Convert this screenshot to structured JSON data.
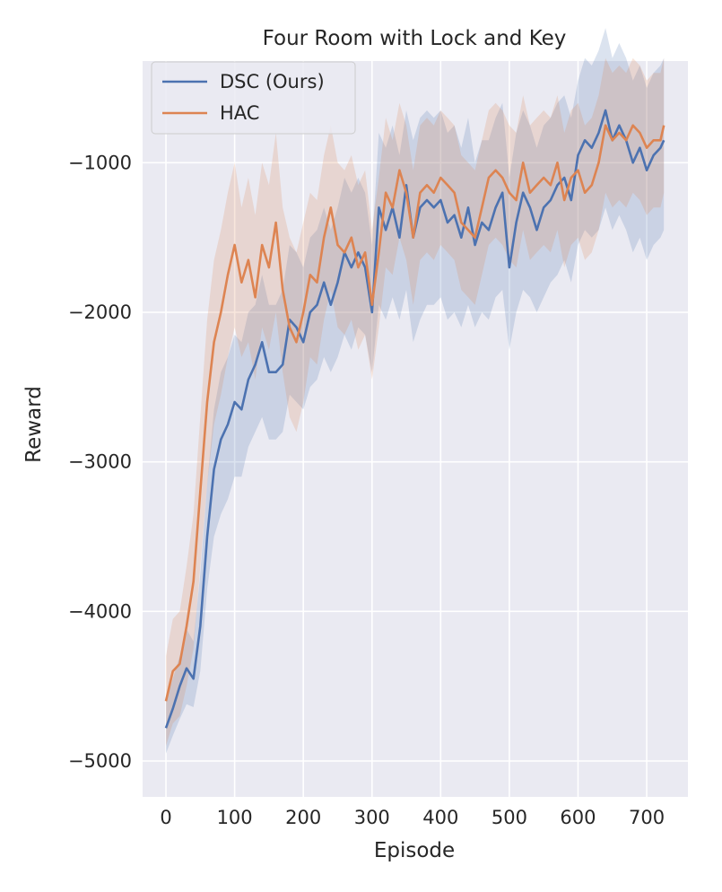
{
  "chart_data": {
    "type": "line",
    "title": "Four Room with Lock and Key",
    "xlabel": "Episode",
    "ylabel": "Reward",
    "xlim": [
      -34,
      760
    ],
    "ylim": [
      -5240,
      -320
    ],
    "xticks": [
      0,
      100,
      200,
      300,
      400,
      500,
      600,
      700
    ],
    "xtick_labels": [
      "0",
      "100",
      "200",
      "300",
      "400",
      "500",
      "600",
      "700"
    ],
    "yticks": [
      -5000,
      -4000,
      -3000,
      -2000,
      -1000
    ],
    "ytick_labels": [
      "−5000",
      "−4000",
      "−3000",
      "−2000",
      "−1000"
    ],
    "grid": true,
    "legend_position": "top-left",
    "background_color": "#eaeaf2",
    "series": [
      {
        "name": "DSC (Ours)",
        "color": "#4c72b0",
        "x": [
          0,
          10,
          20,
          30,
          40,
          50,
          60,
          70,
          80,
          90,
          100,
          110,
          120,
          130,
          140,
          150,
          160,
          170,
          180,
          190,
          200,
          210,
          220,
          230,
          240,
          250,
          260,
          270,
          280,
          290,
          300,
          310,
          320,
          330,
          340,
          350,
          360,
          370,
          380,
          390,
          400,
          410,
          420,
          430,
          440,
          450,
          460,
          470,
          480,
          490,
          500,
          510,
          520,
          530,
          540,
          550,
          560,
          570,
          580,
          590,
          600,
          610,
          620,
          630,
          640,
          650,
          660,
          670,
          680,
          690,
          700,
          710,
          720,
          725
        ],
        "y": [
          -4780,
          -4650,
          -4500,
          -4380,
          -4450,
          -4100,
          -3500,
          -3050,
          -2850,
          -2750,
          -2600,
          -2650,
          -2450,
          -2350,
          -2200,
          -2400,
          -2400,
          -2350,
          -2050,
          -2100,
          -2200,
          -2000,
          -1950,
          -1800,
          -1950,
          -1800,
          -1600,
          -1700,
          -1600,
          -1700,
          -2000,
          -1300,
          -1450,
          -1300,
          -1500,
          -1150,
          -1500,
          -1300,
          -1250,
          -1300,
          -1250,
          -1400,
          -1350,
          -1500,
          -1300,
          -1550,
          -1400,
          -1450,
          -1300,
          -1200,
          -1700,
          -1400,
          -1200,
          -1300,
          -1450,
          -1300,
          -1250,
          -1150,
          -1100,
          -1250,
          -950,
          -850,
          -900,
          -800,
          -650,
          -850,
          -750,
          -850,
          -1000,
          -900,
          -1050,
          -950,
          -900,
          -850
        ],
        "lower": [
          -4950,
          -4830,
          -4720,
          -4620,
          -4640,
          -4400,
          -3850,
          -3500,
          -3350,
          -3250,
          -3100,
          -3100,
          -2900,
          -2800,
          -2700,
          -2850,
          -2850,
          -2800,
          -2550,
          -2600,
          -2650,
          -2500,
          -2450,
          -2300,
          -2400,
          -2300,
          -2150,
          -2250,
          -2100,
          -2150,
          -2400,
          -1950,
          -2050,
          -1900,
          -2050,
          -1850,
          -2200,
          -2050,
          -1950,
          -1950,
          -1900,
          -2050,
          -2000,
          -2100,
          -1950,
          -2100,
          -2000,
          -2050,
          -1900,
          -1850,
          -2250,
          -2000,
          -1850,
          -1900,
          -2000,
          -1900,
          -1800,
          -1750,
          -1650,
          -1800,
          -1550,
          -1450,
          -1500,
          -1450,
          -1300,
          -1450,
          -1350,
          -1450,
          -1600,
          -1500,
          -1650,
          -1550,
          -1500,
          -1450
        ],
        "upper": [
          -4600,
          -4450,
          -4300,
          -4120,
          -4200,
          -3750,
          -3150,
          -2650,
          -2400,
          -2300,
          -2150,
          -2200,
          -2000,
          -1950,
          -1750,
          -1950,
          -1950,
          -1850,
          -1550,
          -1600,
          -1700,
          -1500,
          -1450,
          -1300,
          -1450,
          -1300,
          -1100,
          -1200,
          -1100,
          -1200,
          -1550,
          -800,
          -900,
          -750,
          -950,
          -650,
          -850,
          -700,
          -650,
          -700,
          -650,
          -800,
          -750,
          -900,
          -700,
          -1000,
          -850,
          -850,
          -700,
          -600,
          -1100,
          -800,
          -650,
          -750,
          -900,
          -750,
          -700,
          -600,
          -550,
          -700,
          -450,
          -300,
          -350,
          -250,
          -100,
          -300,
          -200,
          -300,
          -450,
          -350,
          -500,
          -400,
          -350,
          -300
        ]
      },
      {
        "name": "HAC",
        "color": "#dd8452",
        "x": [
          0,
          10,
          20,
          30,
          40,
          50,
          60,
          70,
          80,
          90,
          100,
          110,
          120,
          130,
          140,
          150,
          160,
          170,
          180,
          190,
          200,
          210,
          220,
          230,
          240,
          250,
          260,
          270,
          280,
          290,
          300,
          310,
          320,
          330,
          340,
          350,
          360,
          370,
          380,
          390,
          400,
          410,
          420,
          430,
          440,
          450,
          460,
          470,
          480,
          490,
          500,
          510,
          520,
          530,
          540,
          550,
          560,
          570,
          580,
          590,
          600,
          610,
          620,
          630,
          640,
          650,
          660,
          670,
          680,
          690,
          700,
          710,
          720,
          725
        ],
        "y": [
          -4600,
          -4400,
          -4350,
          -4100,
          -3800,
          -3200,
          -2600,
          -2200,
          -2000,
          -1750,
          -1550,
          -1800,
          -1650,
          -1900,
          -1550,
          -1700,
          -1400,
          -1850,
          -2100,
          -2200,
          -2000,
          -1750,
          -1800,
          -1500,
          -1300,
          -1550,
          -1600,
          -1500,
          -1700,
          -1600,
          -1950,
          -1600,
          -1200,
          -1300,
          -1050,
          -1200,
          -1500,
          -1200,
          -1150,
          -1200,
          -1100,
          -1150,
          -1200,
          -1400,
          -1450,
          -1500,
          -1300,
          -1100,
          -1050,
          -1100,
          -1200,
          -1250,
          -1000,
          -1200,
          -1150,
          -1100,
          -1150,
          -1000,
          -1250,
          -1100,
          -1050,
          -1200,
          -1150,
          -1000,
          -750,
          -850,
          -800,
          -850,
          -750,
          -800,
          -900,
          -850,
          -850,
          -750
        ],
        "lower": [
          -4900,
          -4750,
          -4700,
          -4500,
          -4250,
          -3700,
          -3150,
          -2750,
          -2550,
          -2300,
          -2100,
          -2300,
          -2200,
          -2450,
          -2100,
          -2250,
          -2000,
          -2400,
          -2700,
          -2800,
          -2600,
          -2300,
          -2350,
          -2050,
          -1850,
          -2100,
          -2150,
          -2050,
          -2250,
          -2150,
          -2450,
          -2100,
          -1700,
          -1750,
          -1500,
          -1650,
          -1950,
          -1650,
          -1600,
          -1650,
          -1550,
          -1600,
          -1650,
          -1850,
          -1900,
          -1950,
          -1750,
          -1550,
          -1500,
          -1550,
          -1650,
          -1700,
          -1450,
          -1650,
          -1600,
          -1550,
          -1600,
          -1450,
          -1700,
          -1550,
          -1500,
          -1650,
          -1600,
          -1450,
          -1200,
          -1300,
          -1250,
          -1300,
          -1200,
          -1250,
          -1350,
          -1300,
          -1300,
          -1200
        ],
        "upper": [
          -4300,
          -4050,
          -4000,
          -3700,
          -3350,
          -2700,
          -2050,
          -1650,
          -1450,
          -1200,
          -1000,
          -1300,
          -1100,
          -1350,
          -1000,
          -1150,
          -800,
          -1300,
          -1500,
          -1600,
          -1400,
          -1200,
          -1250,
          -950,
          -750,
          -1000,
          -1050,
          -950,
          -1150,
          -1050,
          -1450,
          -1100,
          -700,
          -850,
          -600,
          -750,
          -1050,
          -750,
          -700,
          -750,
          -650,
          -700,
          -750,
          -950,
          -1000,
          -1050,
          -850,
          -650,
          -600,
          -650,
          -750,
          -800,
          -550,
          -750,
          -700,
          -650,
          -700,
          -550,
          -800,
          -650,
          -600,
          -750,
          -700,
          -550,
          -300,
          -400,
          -350,
          -400,
          -300,
          -350,
          -450,
          -400,
          -400,
          -300
        ]
      }
    ]
  }
}
